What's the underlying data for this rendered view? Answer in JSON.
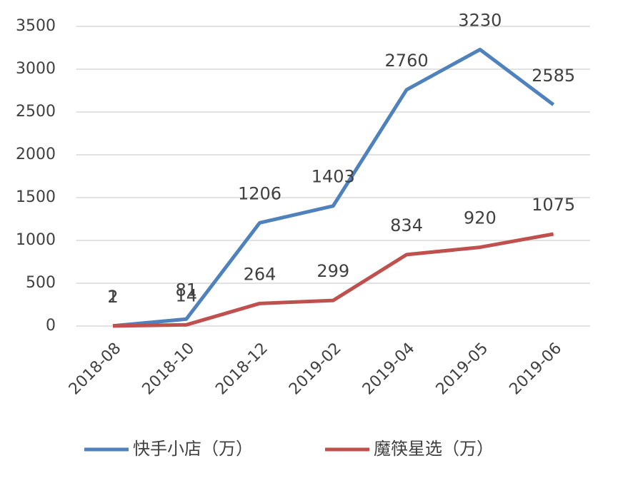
{
  "chart_data": {
    "type": "line",
    "categories": [
      "2018-08",
      "2018-10",
      "2018-12",
      "2019-02",
      "2019-04",
      "2019-05",
      "2019-06"
    ],
    "series": [
      {
        "name": "快手小店（万）",
        "color": "#4f81bd",
        "values": [
          2,
          81,
          1206,
          1403,
          2760,
          3230,
          2585
        ]
      },
      {
        "name": "魔筷星选（万）",
        "color": "#c0504d",
        "values": [
          1,
          14,
          264,
          299,
          834,
          920,
          1075
        ]
      }
    ],
    "ylim": [
      0,
      3500
    ],
    "yticks": [
      0,
      500,
      1000,
      1500,
      2000,
      2500,
      3000,
      3500
    ],
    "grid": true,
    "legend": "bottom"
  }
}
